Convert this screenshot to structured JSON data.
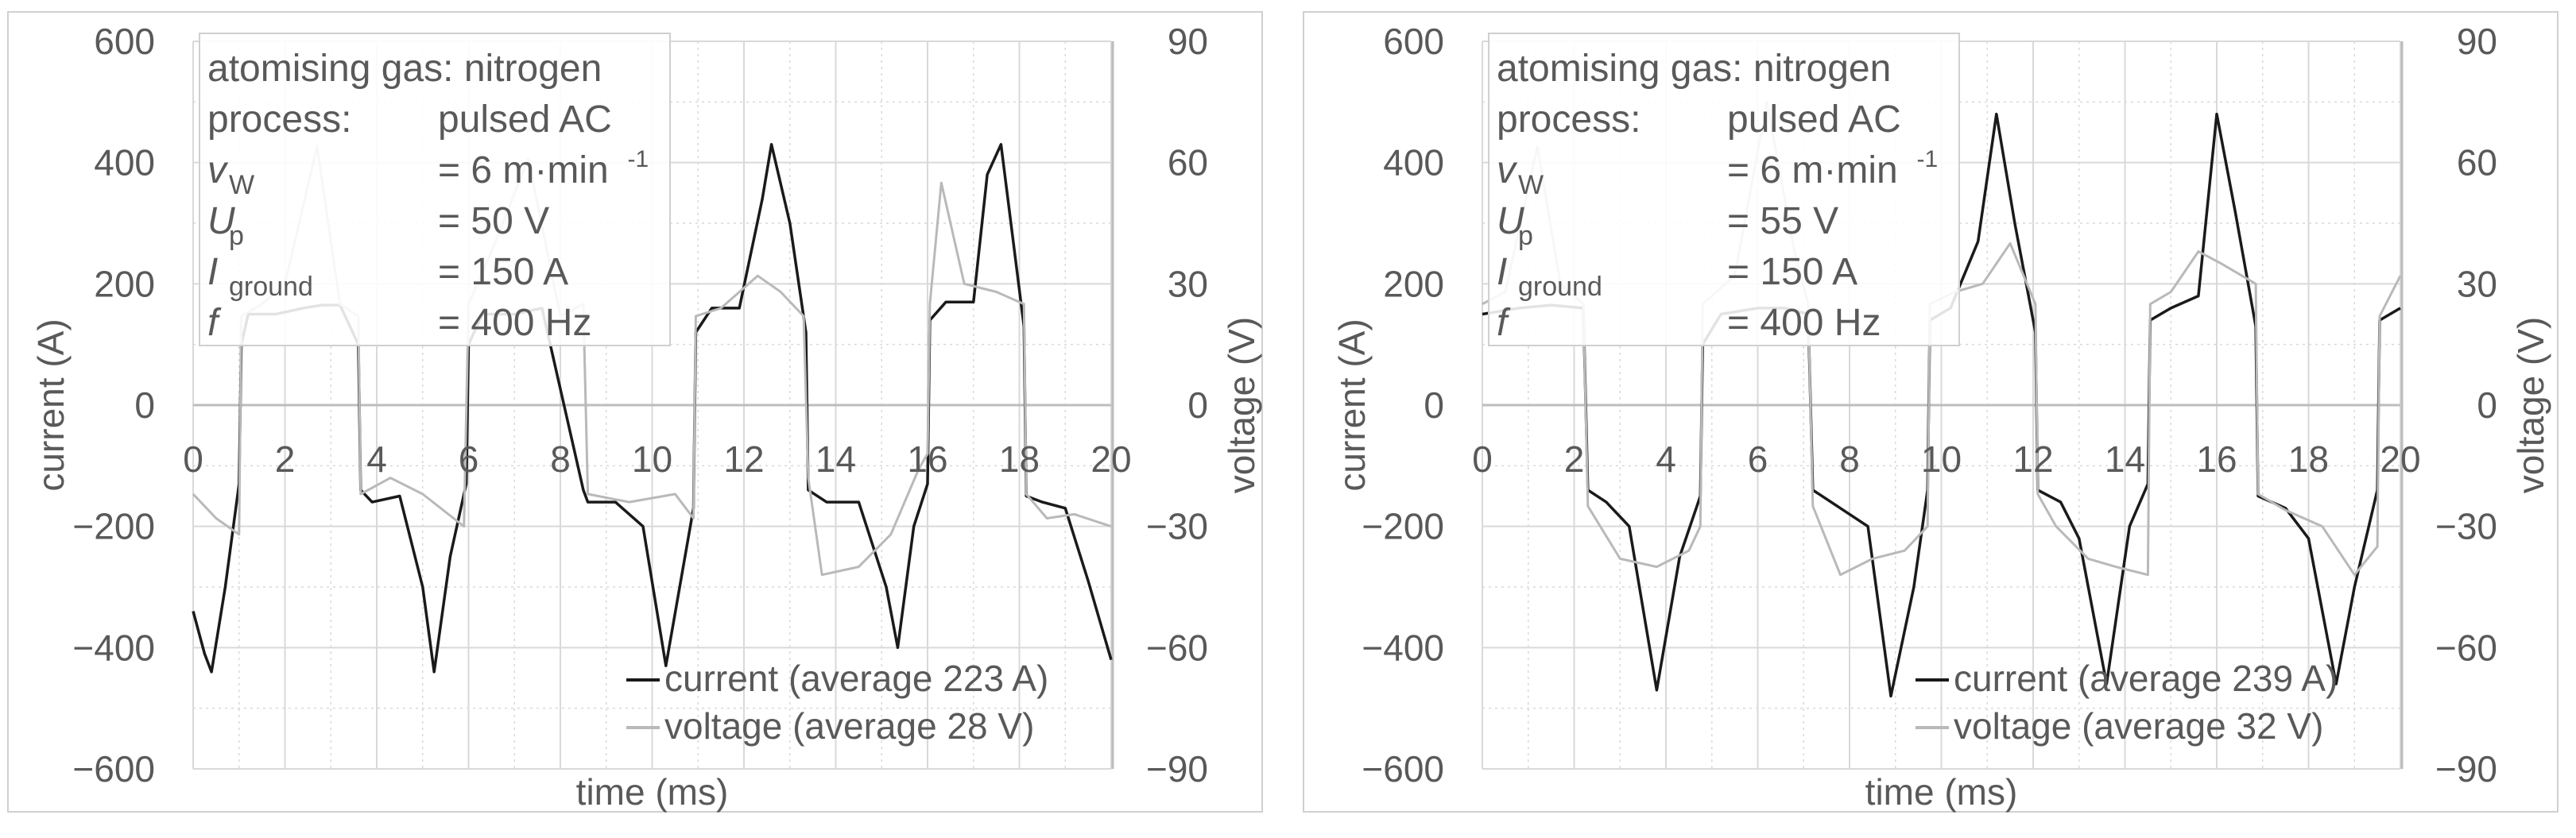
{
  "colors": {
    "current": "#1a1a1a",
    "voltage": "#b9b9b9",
    "axis": "#bdbdbd",
    "grid": "#d9d9d9",
    "text": "#595959",
    "frame": "#d0d0d0"
  },
  "chart_data": [
    {
      "type": "line",
      "xlabel": "time (ms)",
      "ylabel_left": "current (A)",
      "ylabel_right": "voltage (V)",
      "xlim": [
        0,
        20
      ],
      "ylim_left": [
        -600,
        600
      ],
      "ylim_right": [
        -90,
        90
      ],
      "x_ticks": [
        "0",
        "2",
        "4",
        "6",
        "8",
        "10",
        "12",
        "14",
        "16",
        "18",
        "20"
      ],
      "y_left_ticks": [
        "600",
        "400",
        "200",
        "0",
        "−200",
        "−400",
        "−600"
      ],
      "y_right_ticks": [
        "90",
        "60",
        "30",
        "0",
        "−30",
        "−60",
        "−90"
      ],
      "grid": true,
      "info_box": {
        "line1": "atomising gas: nitrogen",
        "rows": [
          {
            "sym": "process:",
            "sub": "",
            "val": "pulsed AC"
          },
          {
            "sym": "v",
            "sub": "W",
            "val": "= 6 m·min",
            "sup": "-1"
          },
          {
            "sym": "U",
            "sub": "p",
            "val": "= 50 V"
          },
          {
            "sym": "I",
            "sub": "ground",
            "val": "= 150 A"
          },
          {
            "sym": "f",
            "sub": "",
            "val": "= 400 Hz"
          }
        ]
      },
      "legend": [
        "current (average 223 A)",
        "voltage (average 28 V)"
      ],
      "series": [
        {
          "name": "current",
          "axis": "left",
          "x": [
            0,
            0.25,
            0.4,
            0.7,
            1.0,
            1.05,
            1.2,
            1.8,
            2.4,
            2.8,
            3.2,
            3.6,
            3.65,
            3.9,
            4.5,
            5.0,
            5.25,
            5.6,
            5.95,
            6.0,
            6.3,
            7.0,
            7.6,
            8.5,
            8.6,
            9.2,
            9.8,
            10.3,
            10.9,
            10.95,
            11.3,
            11.9,
            12.4,
            12.6,
            13.0,
            13.35,
            13.4,
            13.8,
            14.5,
            15.1,
            15.35,
            15.7,
            16.0,
            16.05,
            16.4,
            17.0,
            17.3,
            17.6,
            18.1,
            18.15,
            18.5,
            19.0,
            19.5,
            20.0
          ],
          "y": [
            -340,
            -410,
            -440,
            -300,
            -130,
            100,
            150,
            150,
            160,
            165,
            165,
            100,
            -140,
            -160,
            -150,
            -300,
            -440,
            -250,
            -130,
            100,
            150,
            150,
            160,
            -140,
            -160,
            -160,
            -200,
            -430,
            -170,
            120,
            160,
            160,
            340,
            430,
            300,
            120,
            -140,
            -160,
            -160,
            -300,
            -400,
            -200,
            -130,
            140,
            170,
            170,
            380,
            430,
            130,
            -150,
            -160,
            -170,
            -290,
            -420
          ]
        },
        {
          "name": "voltage",
          "axis": "right",
          "x": [
            0,
            0.5,
            1.0,
            1.05,
            1.5,
            2.0,
            2.7,
            3.2,
            3.6,
            3.65,
            4.3,
            5.0,
            5.9,
            6.0,
            6.5,
            7.3,
            8.0,
            8.5,
            8.6,
            9.5,
            10.5,
            10.9,
            10.95,
            11.5,
            12.3,
            12.8,
            13.3,
            13.4,
            13.7,
            14.5,
            15.2,
            15.8,
            16.0,
            16.05,
            16.3,
            16.8,
            17.5,
            18.1,
            18.15,
            18.6,
            19.2,
            20.0
          ],
          "y": [
            -22,
            -28,
            -32,
            22,
            25,
            30,
            64,
            25,
            22,
            -22,
            -18,
            -22,
            -30,
            25,
            38,
            61,
            22,
            25,
            -22,
            -24,
            -22,
            -28,
            22,
            24,
            32,
            28,
            22,
            -18,
            -42,
            -40,
            -32,
            -16,
            -12,
            25,
            55,
            30,
            28,
            25,
            -22,
            -28,
            -27,
            -30
          ]
        }
      ]
    },
    {
      "type": "line",
      "xlabel": "time (ms)",
      "ylabel_left": "current (A)",
      "ylabel_right": "voltage (V)",
      "xlim": [
        0,
        20
      ],
      "ylim_left": [
        -600,
        600
      ],
      "ylim_right": [
        -90,
        90
      ],
      "x_ticks": [
        "0",
        "2",
        "4",
        "6",
        "8",
        "10",
        "12",
        "14",
        "16",
        "18",
        "20"
      ],
      "y_left_ticks": [
        "600",
        "400",
        "200",
        "0",
        "−200",
        "−400",
        "−600"
      ],
      "y_right_ticks": [
        "90",
        "60",
        "30",
        "0",
        "−30",
        "−60",
        "−90"
      ],
      "grid": true,
      "info_box": {
        "line1": "atomising gas: nitrogen",
        "rows": [
          {
            "sym": "process:",
            "sub": "",
            "val": "pulsed AC"
          },
          {
            "sym": "v",
            "sub": "W",
            "val": "= 6 m·min",
            "sup": "-1"
          },
          {
            "sym": "U",
            "sub": "p",
            "val": "= 55 V"
          },
          {
            "sym": "I",
            "sub": "ground",
            "val": "= 150 A"
          },
          {
            "sym": "f",
            "sub": "",
            "val": "= 400 Hz"
          }
        ]
      },
      "legend": [
        "current (average 239 A)",
        "voltage (average 32 V)"
      ],
      "series": [
        {
          "name": "current",
          "axis": "left",
          "x": [
            0,
            0.8,
            1.5,
            2.2,
            2.3,
            2.7,
            3.2,
            3.8,
            4.3,
            4.75,
            4.8,
            5.2,
            6.0,
            6.6,
            7.1,
            7.2,
            7.8,
            8.4,
            8.9,
            9.4,
            9.7,
            9.75,
            10.2,
            10.8,
            11.2,
            11.6,
            12.05,
            12.1,
            12.6,
            13.0,
            13.6,
            14.1,
            14.5,
            14.55,
            15.0,
            15.6,
            16.0,
            16.4,
            16.85,
            16.9,
            17.5,
            18.0,
            18.6,
            19.0,
            19.5,
            19.55,
            20.0
          ],
          "y": [
            150,
            160,
            165,
            160,
            -140,
            -160,
            -200,
            -470,
            -250,
            -150,
            100,
            150,
            160,
            160,
            150,
            -140,
            -170,
            -200,
            -480,
            -300,
            -140,
            140,
            160,
            270,
            480,
            300,
            120,
            -140,
            -160,
            -220,
            -460,
            -200,
            -130,
            140,
            160,
            180,
            480,
            320,
            130,
            -150,
            -170,
            -220,
            -460,
            -300,
            -140,
            140,
            160
          ]
        },
        {
          "name": "voltage",
          "axis": "right",
          "x": [
            0,
            0.5,
            1.2,
            1.7,
            2.2,
            2.3,
            3.0,
            3.8,
            4.5,
            4.75,
            4.8,
            5.5,
            6.2,
            6.8,
            7.1,
            7.2,
            7.8,
            8.5,
            9.2,
            9.7,
            9.75,
            10.3,
            10.9,
            11.5,
            12.05,
            12.1,
            12.5,
            13.2,
            13.8,
            14.5,
            14.55,
            15.0,
            15.6,
            16.1,
            16.85,
            16.9,
            17.5,
            18.3,
            19.0,
            19.5,
            19.55,
            20.0
          ],
          "y": [
            25,
            28,
            64,
            30,
            25,
            -25,
            -38,
            -40,
            -36,
            -30,
            25,
            32,
            75,
            38,
            25,
            -25,
            -42,
            -38,
            -36,
            -30,
            25,
            28,
            30,
            40,
            25,
            -22,
            -30,
            -38,
            -40,
            -42,
            25,
            28,
            38,
            35,
            30,
            -22,
            -26,
            -30,
            -42,
            -35,
            22,
            32
          ]
        }
      ]
    }
  ]
}
